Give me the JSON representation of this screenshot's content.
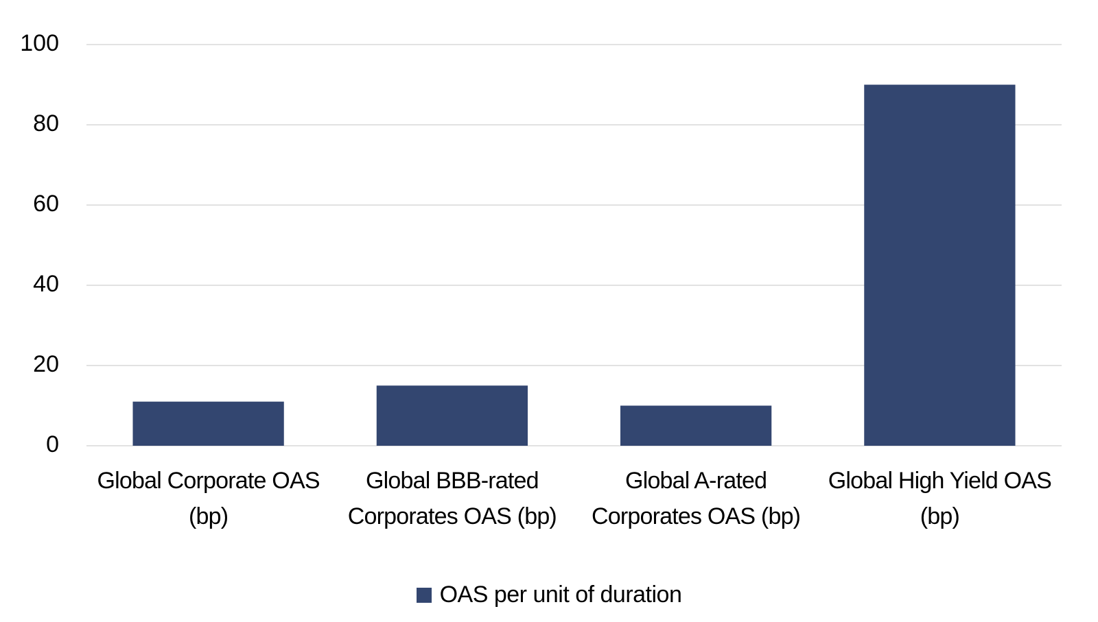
{
  "chart_data": {
    "type": "bar",
    "categories": [
      "Global Corporate OAS (bp)",
      "Global BBB-rated Corporates OAS (bp)",
      "Global A-rated Corporates OAS (bp)",
      "Global High Yield OAS (bp)"
    ],
    "series": [
      {
        "name": "OAS per unit of duration",
        "color": "#334670",
        "values": [
          11,
          15,
          10,
          90
        ]
      }
    ],
    "ylim": [
      0,
      100
    ],
    "yticks": [
      0,
      20,
      40,
      60,
      80,
      100
    ],
    "grid": true,
    "legend": "bottom"
  }
}
